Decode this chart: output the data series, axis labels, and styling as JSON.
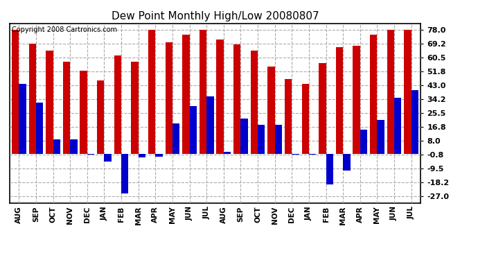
{
  "title": "Dew Point Monthly High/Low 20080807",
  "copyright": "Copyright 2008 Cartronics.com",
  "categories": [
    "AUG",
    "SEP",
    "OCT",
    "NOV",
    "DEC",
    "JAN",
    "FEB",
    "MAR",
    "APR",
    "MAY",
    "JUN",
    "JUL",
    "AUG",
    "SEP",
    "OCT",
    "NOV",
    "DEC",
    "JAN",
    "FEB",
    "MAR",
    "APR",
    "MAY",
    "JUN",
    "JUL"
  ],
  "highs": [
    78.0,
    69.2,
    65.0,
    58.0,
    52.0,
    46.0,
    62.0,
    58.0,
    78.0,
    70.0,
    75.0,
    78.0,
    72.0,
    69.0,
    65.0,
    55.0,
    47.0,
    44.0,
    57.0,
    67.0,
    68.0,
    75.0,
    78.0,
    78.0
  ],
  "lows": [
    44.0,
    32.0,
    9.0,
    9.0,
    -0.8,
    -5.0,
    -25.0,
    -2.5,
    -2.0,
    19.0,
    30.0,
    36.0,
    1.0,
    22.0,
    18.0,
    18.0,
    -0.8,
    -0.8,
    -19.5,
    -10.5,
    15.0,
    21.0,
    35.0,
    40.0
  ],
  "high_color": "#cc0000",
  "low_color": "#0000cc",
  "yticks": [
    -27.0,
    -18.2,
    -9.5,
    -0.8,
    8.0,
    16.8,
    25.5,
    34.2,
    43.0,
    51.8,
    60.5,
    69.2,
    78.0
  ],
  "ylim": [
    -31.0,
    82.0
  ],
  "xlim_left": -0.55,
  "background_color": "#ffffff",
  "grid_color": "#aaaaaa",
  "title_fontsize": 11,
  "copyright_fontsize": 7,
  "bar_width": 0.42
}
